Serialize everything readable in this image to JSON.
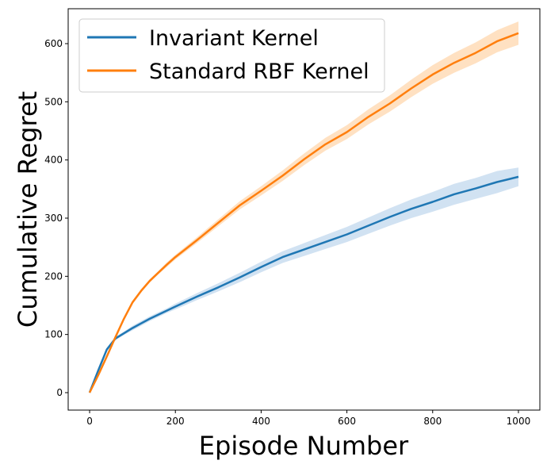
{
  "chart_data": {
    "type": "line",
    "title": "",
    "xlabel": "Episode Number",
    "ylabel": "Cumulative Regret",
    "xlim": [
      -50,
      1050
    ],
    "ylim": [
      -30,
      660
    ],
    "xticks": [
      0,
      200,
      400,
      600,
      800,
      1000
    ],
    "yticks": [
      0,
      100,
      200,
      300,
      400,
      500,
      600
    ],
    "grid": false,
    "legend_position": "top-left",
    "x": [
      0,
      20,
      40,
      60,
      80,
      100,
      120,
      140,
      160,
      180,
      200,
      250,
      300,
      350,
      400,
      450,
      500,
      550,
      600,
      650,
      700,
      750,
      800,
      850,
      900,
      950,
      1000
    ],
    "series": [
      {
        "name": "Invariant Kernel",
        "color": "#1f77b4",
        "band_color": "#c6dbef",
        "values": [
          0,
          38,
          74,
          93,
          102,
          111,
          119,
          127,
          134,
          141,
          148,
          165,
          181,
          198,
          216,
          233,
          246,
          259,
          272,
          287,
          302,
          316,
          328,
          341,
          351,
          362,
          371
        ],
        "lower": [
          0,
          36,
          71,
          90,
          99,
          107,
          115,
          123,
          130,
          137,
          143,
          159,
          174,
          190,
          207,
          223,
          235,
          247,
          259,
          273,
          287,
          300,
          311,
          323,
          333,
          343,
          355
        ],
        "upper": [
          0,
          40,
          77,
          96,
          105,
          115,
          123,
          131,
          138,
          145,
          153,
          171,
          188,
          206,
          225,
          243,
          257,
          271,
          285,
          301,
          317,
          332,
          345,
          359,
          369,
          381,
          387
        ]
      },
      {
        "name": "Standard RBF Kernel",
        "color": "#ff7f0e",
        "band_color": "#ffd9b3",
        "values": [
          0,
          30,
          62,
          95,
          127,
          155,
          175,
          192,
          206,
          220,
          233,
          262,
          292,
          322,
          347,
          373,
          401,
          427,
          448,
          474,
          497,
          523,
          547,
          567,
          584,
          604,
          618
        ],
        "lower": [
          0,
          29,
          60,
          92,
          124,
          152,
          172,
          189,
          203,
          216,
          229,
          257,
          286,
          315,
          339,
          364,
          391,
          416,
          436,
          461,
          483,
          508,
          531,
          550,
          566,
          585,
          598
        ],
        "upper": [
          0,
          31,
          64,
          98,
          130,
          158,
          178,
          195,
          209,
          224,
          237,
          267,
          298,
          329,
          355,
          382,
          411,
          438,
          460,
          487,
          511,
          538,
          563,
          584,
          602,
          623,
          638
        ]
      }
    ]
  }
}
